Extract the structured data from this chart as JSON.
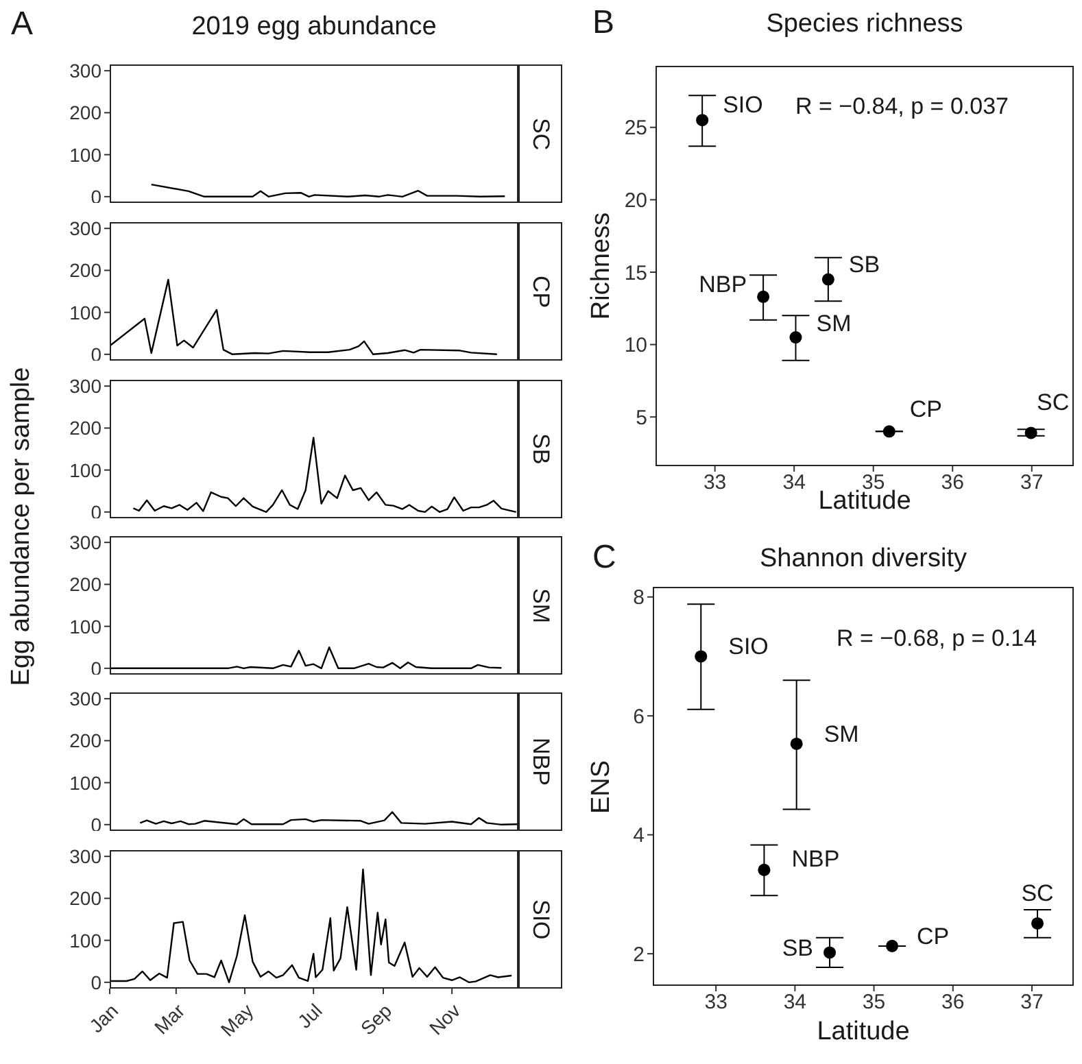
{
  "chart_data": [
    {
      "type": "line",
      "title": "2019 egg abundance",
      "annotations": [
        "A"
      ],
      "xlim": [
        "--01-01",
        "--12-30"
      ],
      "ylim": [
        -15,
        315
      ],
      "yticks": [
        0,
        100,
        200,
        300
      ],
      "tick_labels": "y",
      "series": [
        {
          "name": "SC",
          "color": "#000000",
          "x": [
            "--02-07",
            "--03-12",
            "--03-26",
            "--05-08",
            "--05-15",
            "--05-22",
            "--06-06",
            "--06-20",
            "--06-27",
            "--07-02",
            "--07-31",
            "--08-16",
            "--08-28",
            "--09-05",
            "--09-18",
            "--10-02",
            "--10-10",
            "--11-05",
            "--11-26",
            "--12-18"
          ],
          "values": [
            29,
            13,
            0,
            0,
            13,
            0,
            8,
            9,
            0,
            4,
            0,
            3,
            0,
            4,
            0,
            14,
            2,
            2,
            0,
            1
          ]
        }
      ]
    },
    {
      "type": "line",
      "xlim": [
        "--01-01",
        "--12-30"
      ],
      "ylim": [
        -15,
        315
      ],
      "yticks": [
        0,
        100,
        200,
        300
      ],
      "tick_labels": "y",
      "series": [
        {
          "name": "CP",
          "color": "#000000",
          "x": [
            "--01-01",
            "--02-01",
            "--02-07",
            "--02-22",
            "--03-02",
            "--03-08",
            "--03-16",
            "--04-06",
            "--04-12",
            "--04-20",
            "--05-10",
            "--05-22",
            "--06-04",
            "--06-28",
            "--07-14",
            "--08-02",
            "--08-10",
            "--08-15",
            "--08-23",
            "--09-05",
            "--09-20",
            "--09-28",
            "--10-04",
            "--11-08",
            "--11-18",
            "--12-11"
          ],
          "values": [
            20,
            85,
            3,
            178,
            21,
            33,
            16,
            106,
            11,
            0,
            3,
            2,
            8,
            5,
            5,
            11,
            19,
            31,
            0,
            3,
            10,
            4,
            11,
            9,
            4,
            0
          ]
        }
      ]
    },
    {
      "type": "line",
      "ylabel": "Egg abundance per sample",
      "xlim": [
        "--01-01",
        "--12-30"
      ],
      "ylim": [
        -15,
        315
      ],
      "yticks": [
        0,
        100,
        200,
        300
      ],
      "tick_labels": "y",
      "series": [
        {
          "name": "SB",
          "color": "#000000",
          "x": [
            "--01-22",
            "--01-27",
            "--02-03",
            "--02-10",
            "--02-18",
            "--02-25",
            "--03-04",
            "--03-11",
            "--03-19",
            "--03-25",
            "--04-01",
            "--04-10",
            "--04-16",
            "--04-23",
            "--04-30",
            "--05-08",
            "--05-20",
            "--05-26",
            "--06-03",
            "--06-10",
            "--06-17",
            "--06-24",
            "--07-01",
            "--07-08",
            "--07-14",
            "--07-22",
            "--07-29",
            "--08-05",
            "--08-12",
            "--08-19",
            "--08-26",
            "--09-03",
            "--09-10",
            "--09-18",
            "--09-24",
            "--10-02",
            "--10-08",
            "--10-14",
            "--10-21",
            "--10-28",
            "--11-03",
            "--11-11",
            "--11-18",
            "--11-25",
            "--12-02",
            "--12-08",
            "--12-15",
            "--12-28"
          ],
          "values": [
            9,
            3,
            28,
            3,
            14,
            9,
            17,
            5,
            22,
            2,
            47,
            36,
            33,
            14,
            33,
            13,
            0,
            17,
            52,
            17,
            7,
            52,
            177,
            20,
            50,
            33,
            87,
            52,
            57,
            28,
            47,
            17,
            15,
            7,
            17,
            3,
            0,
            13,
            0,
            7,
            35,
            3,
            11,
            11,
            17,
            27,
            8,
            0
          ]
        }
      ]
    },
    {
      "type": "line",
      "xlim": [
        "--01-01",
        "--12-30"
      ],
      "ylim": [
        -15,
        315
      ],
      "yticks": [
        0,
        100,
        200,
        300
      ],
      "tick_labels": "y",
      "series": [
        {
          "name": "SM",
          "color": "#000000",
          "x": [
            "--01-01",
            "--04-16",
            "--04-24",
            "--04-30",
            "--05-06",
            "--05-26",
            "--06-04",
            "--06-11",
            "--06-18",
            "--06-24",
            "--07-01",
            "--07-08",
            "--07-15",
            "--07-23",
            "--08-06",
            "--08-19",
            "--08-26",
            "--09-01",
            "--09-09",
            "--09-16",
            "--09-23",
            "--09-30",
            "--10-14",
            "--11-18",
            "--11-24",
            "--12-04",
            "--12-15"
          ],
          "values": [
            0,
            0,
            4,
            0,
            3,
            0,
            8,
            4,
            42,
            6,
            10,
            0,
            50,
            0,
            0,
            11,
            3,
            2,
            13,
            0,
            14,
            3,
            0,
            0,
            8,
            2,
            1
          ]
        }
      ]
    },
    {
      "type": "line",
      "xlim": [
        "--01-01",
        "--12-30"
      ],
      "ylim": [
        -15,
        315
      ],
      "yticks": [
        0,
        100,
        200,
        300
      ],
      "tick_labels": "y",
      "series": [
        {
          "name": "NBP",
          "color": "#000000",
          "x": [
            "--01-28",
            "--02-03",
            "--02-11",
            "--02-18",
            "--02-25",
            "--03-05",
            "--03-12",
            "--03-18",
            "--03-26",
            "--04-24",
            "--04-30",
            "--05-07",
            "--06-04",
            "--06-11",
            "--06-24",
            "--07-01",
            "--07-08",
            "--08-12",
            "--08-19",
            "--09-02",
            "--09-09",
            "--09-17",
            "--10-08",
            "--11-01",
            "--11-18",
            "--11-25",
            "--12-02",
            "--12-15",
            "--12-30"
          ],
          "values": [
            4,
            10,
            2,
            8,
            3,
            8,
            1,
            2,
            9,
            1,
            13,
            1,
            1,
            11,
            13,
            7,
            11,
            9,
            2,
            10,
            30,
            4,
            2,
            7,
            1,
            16,
            4,
            0,
            1
          ]
        }
      ]
    },
    {
      "type": "line",
      "xlim": [
        "--01-01",
        "--12-30"
      ],
      "ylim": [
        -15,
        315
      ],
      "yticks": [
        0,
        100,
        200,
        300
      ],
      "xticks": [
        {
          "value": "--01-01",
          "label": "Jan"
        },
        {
          "value": "--03-01",
          "label": "Mar"
        },
        {
          "value": "--05-01",
          "label": "May"
        },
        {
          "value": "--07-01",
          "label": "Jul"
        },
        {
          "value": "--09-01",
          "label": "Sep"
        },
        {
          "value": "--11-01",
          "label": "Nov"
        }
      ],
      "series": [
        {
          "name": "SIO",
          "color": "#000000",
          "x": [
            "--01-01",
            "--01-16",
            "--01-23",
            "--01-30",
            "--02-06",
            "--02-14",
            "--02-21",
            "--02-27",
            "--03-07",
            "--03-13",
            "--03-20",
            "--03-28",
            "--04-04",
            "--04-10",
            "--04-17",
            "--04-24",
            "--05-01",
            "--05-08",
            "--05-15",
            "--05-22",
            "--05-29",
            "--06-04",
            "--06-12",
            "--06-18",
            "--06-26",
            "--07-01",
            "--07-03",
            "--07-09",
            "--07-16",
            "--07-19",
            "--07-25",
            "--07-31",
            "--08-08",
            "--08-14",
            "--08-21",
            "--08-27",
            "--08-30",
            "--09-03",
            "--09-06",
            "--09-11",
            "--09-20",
            "--09-27",
            "--10-03",
            "--10-10",
            "--10-17",
            "--10-24",
            "--11-01",
            "--11-08",
            "--11-16",
            "--11-22",
            "--12-05",
            "--12-12",
            "--12-24"
          ],
          "values": [
            3,
            3,
            8,
            26,
            5,
            21,
            11,
            141,
            144,
            52,
            20,
            20,
            12,
            52,
            0,
            63,
            160,
            49,
            13,
            26,
            11,
            17,
            41,
            11,
            3,
            68,
            12,
            30,
            153,
            28,
            57,
            179,
            30,
            269,
            17,
            166,
            90,
            150,
            47,
            39,
            95,
            13,
            34,
            13,
            36,
            11,
            5,
            12,
            0,
            2,
            17,
            12,
            16
          ]
        }
      ]
    },
    {
      "type": "scatter",
      "title": "Species richness",
      "xlabel": "Latitude",
      "ylabel": "Richness",
      "marker": "circle",
      "xlim": [
        32.25,
        37.53
      ],
      "ylim": [
        1.6,
        29.25
      ],
      "xticks": [
        33,
        34,
        35,
        36,
        37
      ],
      "yticks": [
        5,
        10,
        15,
        20,
        25
      ],
      "annotations": [
        "B",
        "R = −0.84, p = 0.037",
        {
          "text": "SIO",
          "x": 32.84,
          "y": 25.5
        },
        {
          "text": "NBP",
          "x": 33.61,
          "y": 13.3
        },
        {
          "text": "SM",
          "x": 34.02,
          "y": 10.5
        },
        {
          "text": "SB",
          "x": 34.43,
          "y": 14.5
        },
        {
          "text": "CP",
          "x": 35.2,
          "y": 4.0
        },
        {
          "text": "SC",
          "x": 36.99,
          "y": 3.9
        }
      ],
      "series": [
        {
          "color": "#000000",
          "x": [
            32.84,
            33.61,
            34.02,
            34.43,
            35.2,
            36.99
          ],
          "values": [
            25.5,
            13.3,
            10.5,
            14.5,
            4.0,
            3.9
          ],
          "errors": [
            [
              23.7,
              27.2
            ],
            [
              11.7,
              14.8
            ],
            [
              8.9,
              12.0
            ],
            [
              13.0,
              16.0
            ],
            0,
            [
              3.7,
              4.15
            ]
          ]
        }
      ]
    },
    {
      "type": "scatter",
      "title": "Shannon diversity",
      "xlabel": "Latitude",
      "ylabel": "ENS",
      "marker": "circle",
      "xlim": [
        32.2,
        37.53
      ],
      "ylim": [
        1.46,
        8.17
      ],
      "xticks": [
        33,
        34,
        35,
        36,
        37
      ],
      "yticks": [
        2,
        4,
        6,
        8
      ],
      "annotations": [
        "C",
        "R = −0.68, p = 0.14",
        {
          "text": "SIO",
          "x": 32.81,
          "y": 7.0
        },
        {
          "text": "SM",
          "x": 34.02,
          "y": 5.53
        },
        {
          "text": "NBP",
          "x": 33.61,
          "y": 3.41
        },
        {
          "text": "SB",
          "x": 34.44,
          "y": 2.02
        },
        {
          "text": "CP",
          "x": 35.23,
          "y": 2.13
        },
        {
          "text": "SC",
          "x": 37.07,
          "y": 2.51
        }
      ],
      "series": [
        {
          "color": "#000000",
          "x": [
            32.81,
            34.02,
            33.61,
            34.44,
            35.23,
            37.07
          ],
          "values": [
            7.0,
            5.53,
            3.41,
            2.02,
            2.13,
            2.51
          ],
          "errors": [
            [
              6.11,
              7.88
            ],
            [
              4.43,
              6.6
            ],
            [
              2.98,
              3.83
            ],
            [
              1.77,
              2.27
            ],
            0,
            [
              2.27,
              2.74
            ]
          ]
        }
      ]
    }
  ]
}
